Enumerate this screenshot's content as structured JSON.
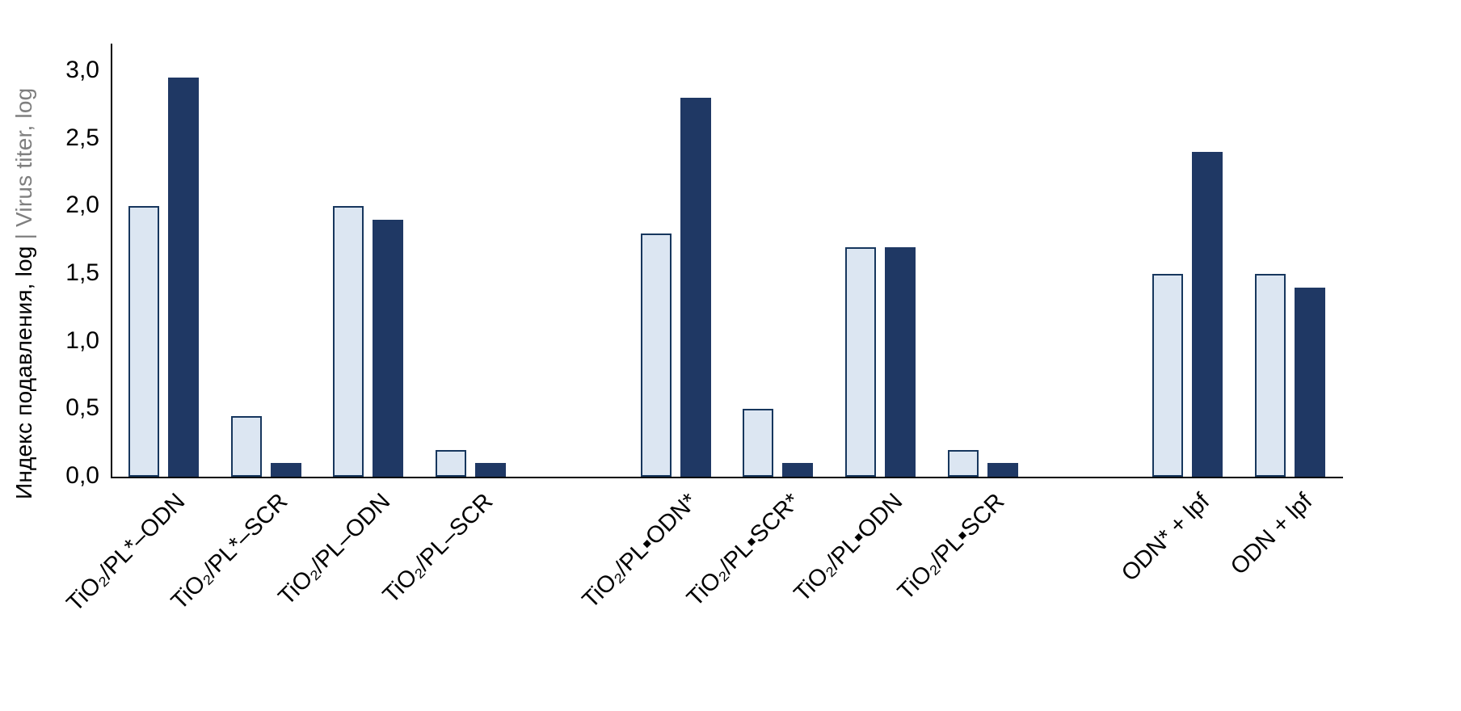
{
  "chart_data": {
    "type": "bar",
    "title": "",
    "ylabel_primary": "Индекс подавления, log",
    "ylabel_separator": " | ",
    "ylabel_secondary": "Virus titer, log",
    "xlabel": "",
    "ylim": [
      0,
      3.0
    ],
    "ytick_step": 0.5,
    "yticks": [
      "0,0",
      "0,5",
      "1,0",
      "1,5",
      "2,0",
      "2,5",
      "3,0"
    ],
    "grid": false,
    "legend_position": "none",
    "series": [
      {
        "id": "suppression-index",
        "axis_label": "Индекс подавления, log",
        "fill": "#dce6f2",
        "border": "#17375e"
      },
      {
        "id": "virus-titer",
        "axis_label": "Virus titer, log",
        "fill": "#1f3864",
        "border": "#1f3864"
      }
    ],
    "groups": [
      {
        "categories": [
          {
            "label": "TiO₂/PL*–ODN",
            "values": [
              2.0,
              2.95
            ]
          },
          {
            "label": "TiO₂/PL*–SCR",
            "values": [
              0.45,
              0.1
            ]
          },
          {
            "label": "TiO₂/PL–ODN",
            "values": [
              2.0,
              1.9
            ]
          },
          {
            "label": "TiO₂/PL–SCR",
            "values": [
              0.2,
              0.1
            ]
          }
        ]
      },
      {
        "categories": [
          {
            "label": "TiO₂/PL▪ODN*",
            "values": [
              1.8,
              2.8
            ]
          },
          {
            "label": "TiO₂/PL▪SCR*",
            "values": [
              0.5,
              0.1
            ]
          },
          {
            "label": "TiO₂/PL▪ODN",
            "values": [
              1.7,
              1.7
            ]
          },
          {
            "label": "TiO₂/PL▪SCR",
            "values": [
              0.2,
              0.1
            ]
          }
        ]
      },
      {
        "categories": [
          {
            "label": "ODN* + lpf",
            "values": [
              1.5,
              2.4
            ]
          },
          {
            "label": "ODN + lpf",
            "values": [
              1.5,
              1.4
            ]
          }
        ]
      }
    ]
  }
}
